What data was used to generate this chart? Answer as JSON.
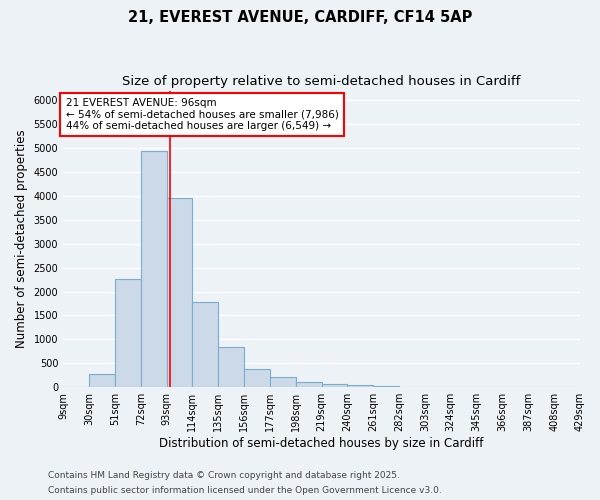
{
  "title_line1": "21, EVEREST AVENUE, CARDIFF, CF14 5AP",
  "title_line2": "Size of property relative to semi-detached houses in Cardiff",
  "xlabel": "Distribution of semi-detached houses by size in Cardiff",
  "ylabel": "Number of semi-detached properties",
  "bar_edges": [
    9,
    30,
    51,
    72,
    93,
    114,
    135,
    156,
    177,
    198,
    219,
    240,
    261,
    282,
    303,
    324,
    345,
    366,
    387,
    408,
    429
  ],
  "bar_heights": [
    0,
    270,
    2270,
    4930,
    3960,
    1790,
    840,
    390,
    215,
    110,
    70,
    40,
    15,
    0,
    0,
    0,
    0,
    0,
    0,
    0
  ],
  "bar_color": "#ccd9e8",
  "bar_edgecolor": "#7aaecf",
  "bar_linewidth": 0.8,
  "vline_x": 96,
  "vline_color": "red",
  "vline_linewidth": 1.2,
  "annotation_title": "21 EVEREST AVENUE: 96sqm",
  "annotation_line2": "← 54% of semi-detached houses are smaller (7,986)",
  "annotation_line3": "44% of semi-detached houses are larger (6,549) →",
  "annotation_box_color": "white",
  "annotation_box_edgecolor": "red",
  "ylim": [
    0,
    6200
  ],
  "yticks": [
    0,
    500,
    1000,
    1500,
    2000,
    2500,
    3000,
    3500,
    4000,
    4500,
    5000,
    5500,
    6000
  ],
  "xlim": [
    9,
    429
  ],
  "tick_labels": [
    "9sqm",
    "30sqm",
    "51sqm",
    "72sqm",
    "93sqm",
    "114sqm",
    "135sqm",
    "156sqm",
    "177sqm",
    "198sqm",
    "219sqm",
    "240sqm",
    "261sqm",
    "282sqm",
    "303sqm",
    "324sqm",
    "345sqm",
    "366sqm",
    "387sqm",
    "408sqm",
    "429sqm"
  ],
  "tick_positions": [
    9,
    30,
    51,
    72,
    93,
    114,
    135,
    156,
    177,
    198,
    219,
    240,
    261,
    282,
    303,
    324,
    345,
    366,
    387,
    408,
    429
  ],
  "footer_line1": "Contains HM Land Registry data © Crown copyright and database right 2025.",
  "footer_line2": "Contains public sector information licensed under the Open Government Licence v3.0.",
  "background_color": "#edf2f7",
  "grid_color": "white",
  "title_fontsize": 10.5,
  "subtitle_fontsize": 9.5,
  "axis_label_fontsize": 8.5,
  "tick_fontsize": 7,
  "annotation_fontsize": 7.5,
  "footer_fontsize": 6.5
}
